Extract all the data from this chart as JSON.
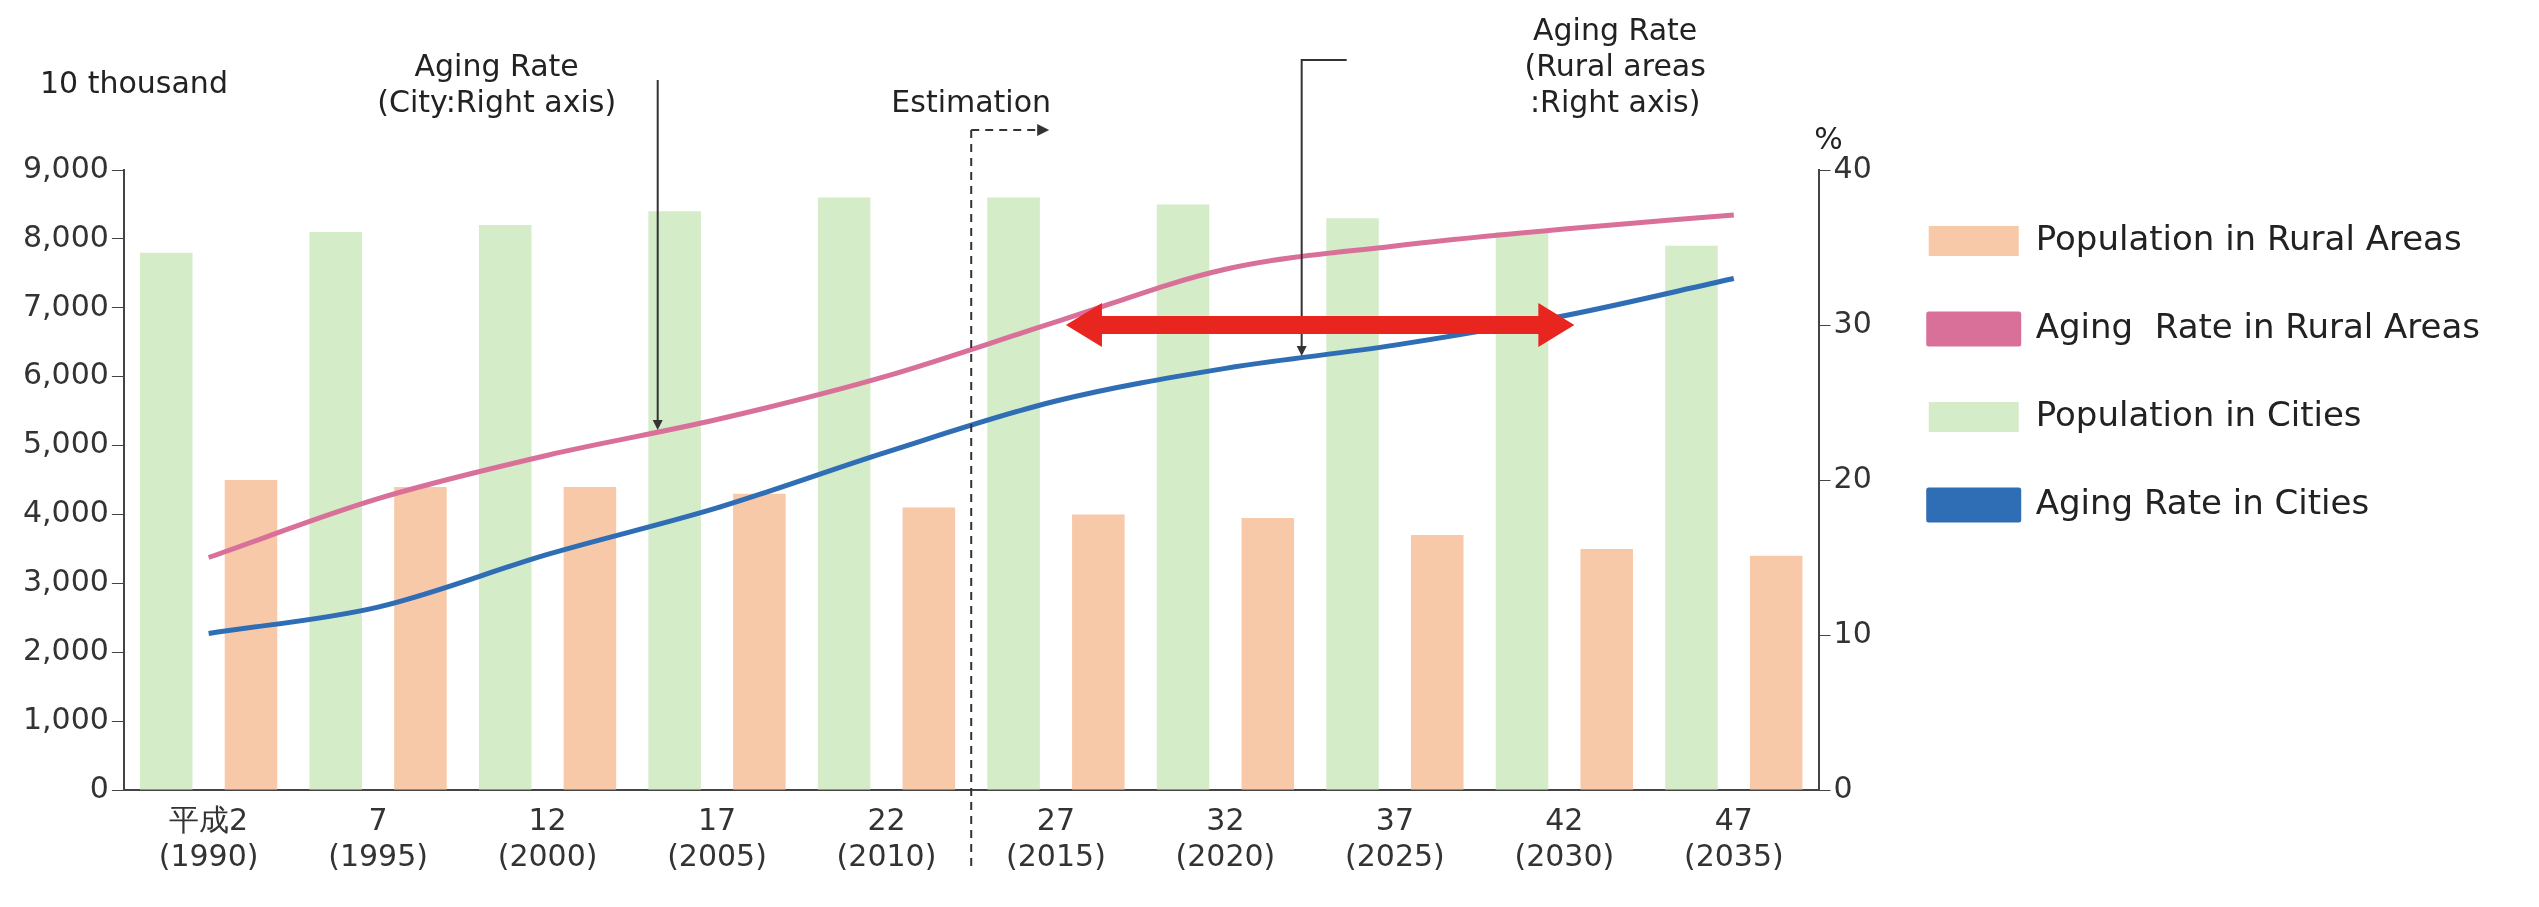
{
  "chart_data": {
    "type": "bar",
    "categories": [
      "平成2 (1990)",
      "7 (1995)",
      "12 (2000)",
      "17 (2005)",
      "22 (2010)",
      "27 (2015)",
      "32 (2020)",
      "37 (2025)",
      "42 (2030)",
      "47 (2035)"
    ],
    "series": [
      {
        "name": "Population in Rural Areas",
        "color": "#f7c9a8",
        "values": [
          4500,
          4400,
          4400,
          4300,
          4100,
          4000,
          3950,
          3700,
          3500,
          3400
        ]
      },
      {
        "name": "Aging  Rate in Rural Areas",
        "type": "line",
        "axis": "y2",
        "color": "#d9709a",
        "values": [
          15.0,
          18.8,
          21.6,
          23.9,
          26.7,
          30.2,
          33.6,
          35.1,
          36.2,
          37.1
        ]
      },
      {
        "name": "Population in Cities",
        "color": "#d4ecc8",
        "values": [
          7800,
          8100,
          8200,
          8400,
          8600,
          8600,
          8500,
          8300,
          8100,
          7900
        ]
      },
      {
        "name": "Aging Rate in Cities",
        "type": "line",
        "axis": "y2",
        "color": "#2f6db5",
        "values": [
          10.1,
          11.8,
          15.2,
          18.2,
          21.8,
          25.1,
          27.2,
          28.7,
          30.6,
          33.0
        ]
      }
    ],
    "ylabel": "10 thousand",
    "y2label": "%",
    "ylim": [
      0,
      9000
    ],
    "yticks": [
      0,
      {
        "value": 1000,
        "label": "1,000"
      },
      {
        "value": 2000,
        "label": "2,000"
      },
      {
        "value": 3000,
        "label": "3,000"
      },
      {
        "value": 4000,
        "label": "4,000"
      },
      {
        "value": 5000,
        "label": "5,000"
      },
      {
        "value": 6000,
        "label": "6,000"
      },
      {
        "value": 7000,
        "label": "7,000"
      },
      {
        "value": 8000,
        "label": "8,000"
      },
      {
        "value": 9000,
        "label": "9,000"
      }
    ],
    "y2lim": [
      0,
      40
    ],
    "y2ticks": [
      0,
      10,
      20,
      30,
      40
    ],
    "annotations": [
      "Aging Rate\n(City:Right axis)",
      "Estimation",
      "Aging Rate\n(Rural areas\n:Right axis)"
    ],
    "legend": "right",
    "marker": "none"
  }
}
